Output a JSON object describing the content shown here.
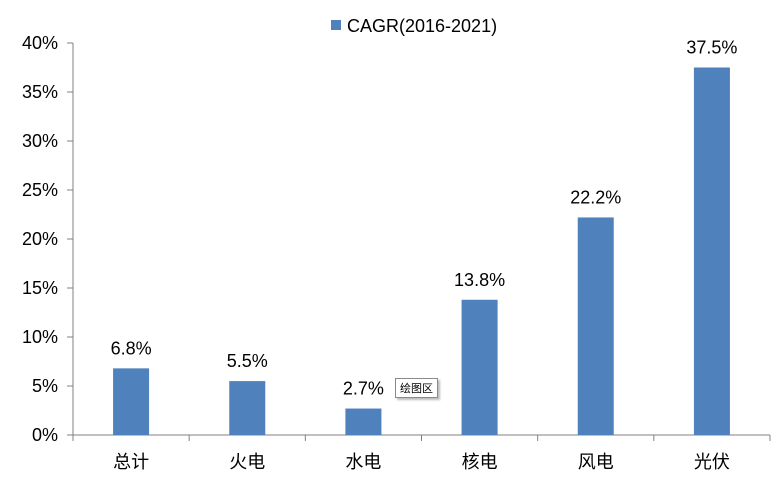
{
  "chart_data": {
    "type": "bar",
    "categories": [
      "总计",
      "火电",
      "水电",
      "核电",
      "风电",
      "光伏"
    ],
    "series": [
      {
        "name": "CAGR(2016-2021)",
        "values": [
          6.8,
          5.5,
          2.7,
          13.8,
          22.2,
          37.5
        ]
      }
    ],
    "data_labels": [
      "6.8%",
      "5.5%",
      "2.7%",
      "13.8%",
      "22.2%",
      "37.5%"
    ],
    "y_ticks": [
      "0%",
      "5%",
      "10%",
      "15%",
      "20%",
      "25%",
      "30%",
      "35%",
      "40%"
    ],
    "ylim": [
      0,
      40
    ],
    "ystep": 5,
    "legend_position": "top",
    "grid": false,
    "color": "#4f81bd"
  },
  "tooltip": "绘图区"
}
